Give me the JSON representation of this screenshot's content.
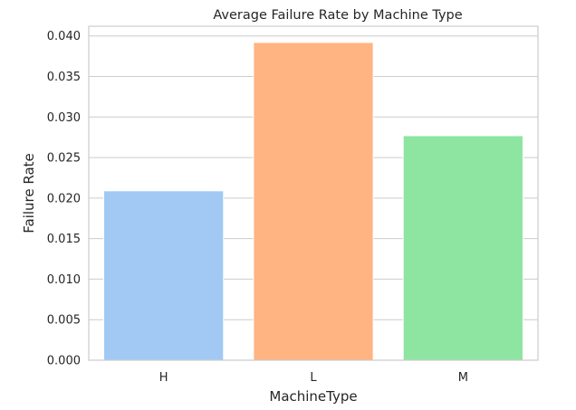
{
  "chart_data": {
    "type": "bar",
    "title": "Average Failure Rate by Machine Type",
    "xlabel": "MachineType",
    "ylabel": "Failure Rate",
    "categories": [
      "H",
      "L",
      "M"
    ],
    "values": [
      0.0209,
      0.0392,
      0.0277
    ],
    "ylim": [
      0,
      0.0412
    ],
    "yticks": [
      "0.000",
      "0.005",
      "0.010",
      "0.015",
      "0.020",
      "0.025",
      "0.030",
      "0.035",
      "0.040"
    ],
    "colors": [
      "#a1c9f4",
      "#ffb482",
      "#8de5a1"
    ],
    "grid": "horizontal",
    "legend": "none"
  }
}
